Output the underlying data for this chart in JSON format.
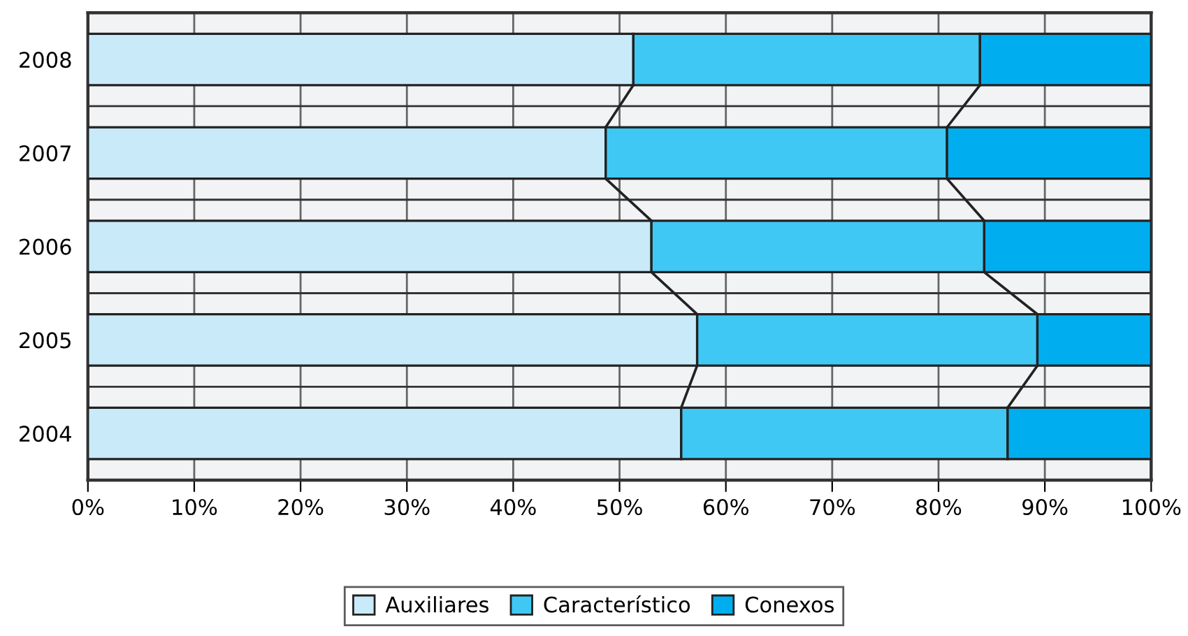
{
  "chart_data": {
    "type": "bar",
    "orientation": "horizontal",
    "stacked": true,
    "categories": [
      "2008",
      "2007",
      "2006",
      "2005",
      "2004"
    ],
    "series": [
      {
        "name": "Auxiliares",
        "color": "#c8eaf9",
        "values": [
          51.3,
          48.7,
          53.0,
          57.3,
          55.8
        ]
      },
      {
        "name": "Característico",
        "color": "#40c8f4",
        "values": [
          32.6,
          32.1,
          31.3,
          32.0,
          30.7
        ]
      },
      {
        "name": "Conexos",
        "color": "#00aeef",
        "values": [
          16.1,
          19.2,
          15.7,
          10.7,
          13.5
        ]
      }
    ],
    "xlim": [
      0,
      100
    ],
    "xticks": [
      {
        "value": 0,
        "label": "0%"
      },
      {
        "value": 10,
        "label": "10%"
      },
      {
        "value": 20,
        "label": "20%"
      },
      {
        "value": 30,
        "label": "30%"
      },
      {
        "value": 40,
        "label": "40%"
      },
      {
        "value": 50,
        "label": "50%"
      },
      {
        "value": 60,
        "label": "60%"
      },
      {
        "value": 70,
        "label": "70%"
      },
      {
        "value": 80,
        "label": "80%"
      },
      {
        "value": 90,
        "label": "90%"
      },
      {
        "value": 100,
        "label": "100%"
      }
    ],
    "grid": true,
    "legend": "bottom"
  }
}
